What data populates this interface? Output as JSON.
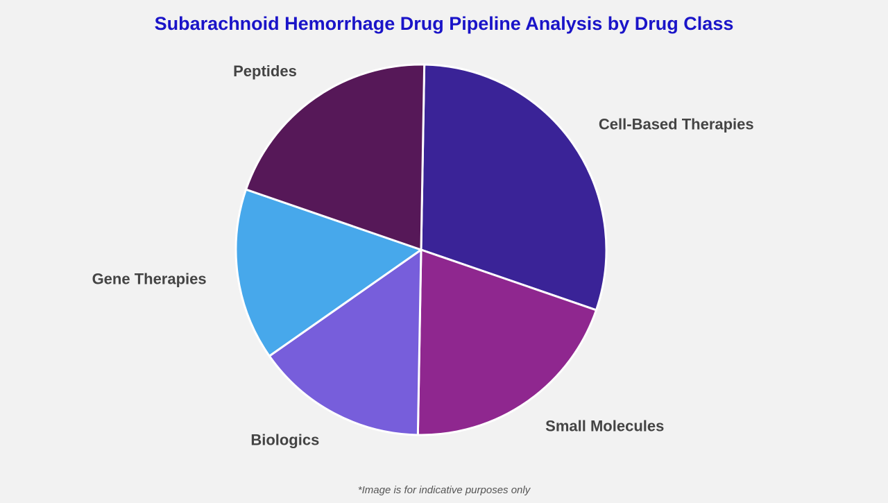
{
  "chart_data": {
    "type": "pie",
    "title": "Subarachnoid Hemorrhage Drug Pipeline Analysis by Drug Class",
    "categories": [
      "Cell-Based Therapies",
      "Small Molecules",
      "Biologics",
      "Gene Therapies",
      "Peptides"
    ],
    "values": [
      30,
      20,
      15,
      15,
      20
    ],
    "colors": [
      "#3a2397",
      "#8f278f",
      "#775edb",
      "#47a8eb",
      "#561858"
    ]
  },
  "footnote": "*Image is for indicative purposes only"
}
